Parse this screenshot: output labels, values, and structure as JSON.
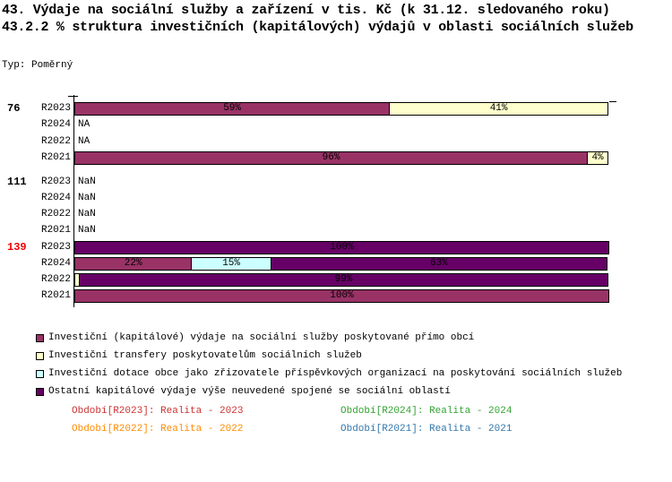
{
  "title": {
    "line1": "43. Výdaje na sociální služby a zařízení v tis. Kč (k 31.12. sledovaného roku)",
    "line2": "43.2.2 % struktura investičních (kapitálových) výdajů v oblasti sociálních služeb"
  },
  "type_label": "Typ: Poměrný",
  "chart_data": {
    "type": "bar",
    "orientation": "horizontal_stacked",
    "value_unit": "%",
    "xlim": [
      0,
      100
    ],
    "grid": false,
    "series": [
      {
        "name": "Investiční (kapitálové) výdaje na sociální služby poskytované přímo obcí",
        "color": "#993366"
      },
      {
        "name": "Investiční transfery poskytovatelům sociálních služeb",
        "color": "#FFFFCC"
      },
      {
        "name": "Investiční dotace obce jako zřizovatele příspěvkových organizací na poskytování sociálních služeb",
        "color": "#CCFFFF"
      },
      {
        "name": "Ostatní kapitálové výdaje výše neuvedené spojené se sociální oblastí",
        "color": "#660066"
      }
    ],
    "groups": [
      {
        "id": "76",
        "id_color": "#000000",
        "rows": [
          {
            "period": "R2023",
            "segments": [
              {
                "series": 0,
                "value": 59,
                "label": "59%"
              },
              {
                "series": 1,
                "value": 41,
                "label": "41%"
              }
            ]
          },
          {
            "period": "R2024",
            "text": "NA"
          },
          {
            "period": "R2022",
            "text": "NA"
          },
          {
            "period": "R2021",
            "segments": [
              {
                "series": 0,
                "value": 96,
                "label": "96%"
              },
              {
                "series": 1,
                "value": 4,
                "label": "4%"
              }
            ]
          }
        ]
      },
      {
        "id": "111",
        "id_color": "#000000",
        "rows": [
          {
            "period": "R2023",
            "text": "NaN"
          },
          {
            "period": "R2024",
            "text": "NaN"
          },
          {
            "period": "R2022",
            "text": "NaN"
          },
          {
            "period": "R2021",
            "text": "NaN"
          }
        ]
      },
      {
        "id": "139",
        "id_color": "#EE0000",
        "rows": [
          {
            "period": "R2023",
            "segments": [
              {
                "series": 3,
                "value": 100,
                "label": "100%"
              }
            ]
          },
          {
            "period": "R2024",
            "segments": [
              {
                "series": 0,
                "value": 22,
                "label": "22%"
              },
              {
                "series": 2,
                "value": 15,
                "label": "15%"
              },
              {
                "series": 3,
                "value": 63,
                "label": "63%"
              }
            ]
          },
          {
            "period": "R2022",
            "segments": [
              {
                "series": 1,
                "value": 1,
                "label": ""
              },
              {
                "series": 3,
                "value": 99,
                "label": "99%"
              }
            ]
          },
          {
            "period": "R2021",
            "segments": [
              {
                "series": 0,
                "value": 100,
                "label": "100%"
              }
            ]
          }
        ]
      }
    ]
  },
  "legend": [
    {
      "label": "Investiční (kapitálové) výdaje na sociální služby poskytované přímo obcí",
      "color": "#993366"
    },
    {
      "label": "Investiční transfery poskytovatelům sociálních služeb",
      "color": "#FFFFCC"
    },
    {
      "label": "Investiční dotace obce jako zřizovatele příspěvkových organizací na poskytování sociálních služeb",
      "color": "#CCFFFF"
    },
    {
      "label": "Ostatní kapitálové výdaje výše neuvedené spojené se sociální oblastí",
      "color": "#660066"
    }
  ],
  "periods_footer": [
    {
      "label": "Období[R2023]: Realita - 2023",
      "color": "#CC3333"
    },
    {
      "label": "Období[R2024]: Realita - 2024",
      "color": "#33A333"
    },
    {
      "label": "Období[R2022]: Realita - 2022",
      "color": "#FF8C00"
    },
    {
      "label": "Období[R2021]: Realita - 2021",
      "color": "#3377AA"
    }
  ]
}
